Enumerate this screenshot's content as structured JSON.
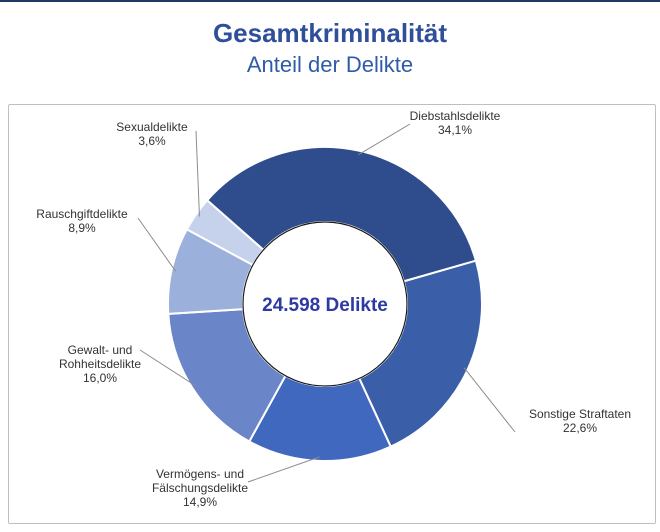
{
  "title": "Gesamtkriminalität",
  "subtitle": "Anteil der Delikte",
  "center_label": "24.598 Delikte",
  "chart_data": {
    "type": "pie",
    "title": "Gesamtkriminalität",
    "subtitle": "Anteil der Delikte",
    "center_label": "24.598 Delikte",
    "total": 24598,
    "slices": [
      {
        "name": "Diebstahlsdelikte",
        "value": 34.1,
        "label_lines": [
          "Diebstahlsdelikte"
        ],
        "pct_text": "34,1%",
        "color": "#2f4d8c"
      },
      {
        "name": "Sonstige Straftaten",
        "value": 22.6,
        "label_lines": [
          "Sonstige Straftaten"
        ],
        "pct_text": "22,6%",
        "color": "#3a5ea8"
      },
      {
        "name": "Vermögens- und Fälschungsdelikte",
        "value": 14.9,
        "label_lines": [
          "Vermögens- und",
          "Fälschungsdelikte"
        ],
        "pct_text": "14,9%",
        "color": "#4068bf"
      },
      {
        "name": "Gewalt- und Rohheitsdelikte",
        "value": 16.0,
        "label_lines": [
          "Gewalt- und",
          "Rohheitsdelikte"
        ],
        "pct_text": "16,0%",
        "color": "#6b86c8"
      },
      {
        "name": "Rauschgiftdelikte",
        "value": 8.9,
        "label_lines": [
          "Rauschgiftdelikte"
        ],
        "pct_text": "8,9%",
        "color": "#9cb0dc"
      },
      {
        "name": "Sexualdelikte",
        "value": 3.6,
        "label_lines": [
          "Sexualdelikte"
        ],
        "pct_text": "3,6%",
        "color": "#c6d2ec"
      }
    ]
  }
}
